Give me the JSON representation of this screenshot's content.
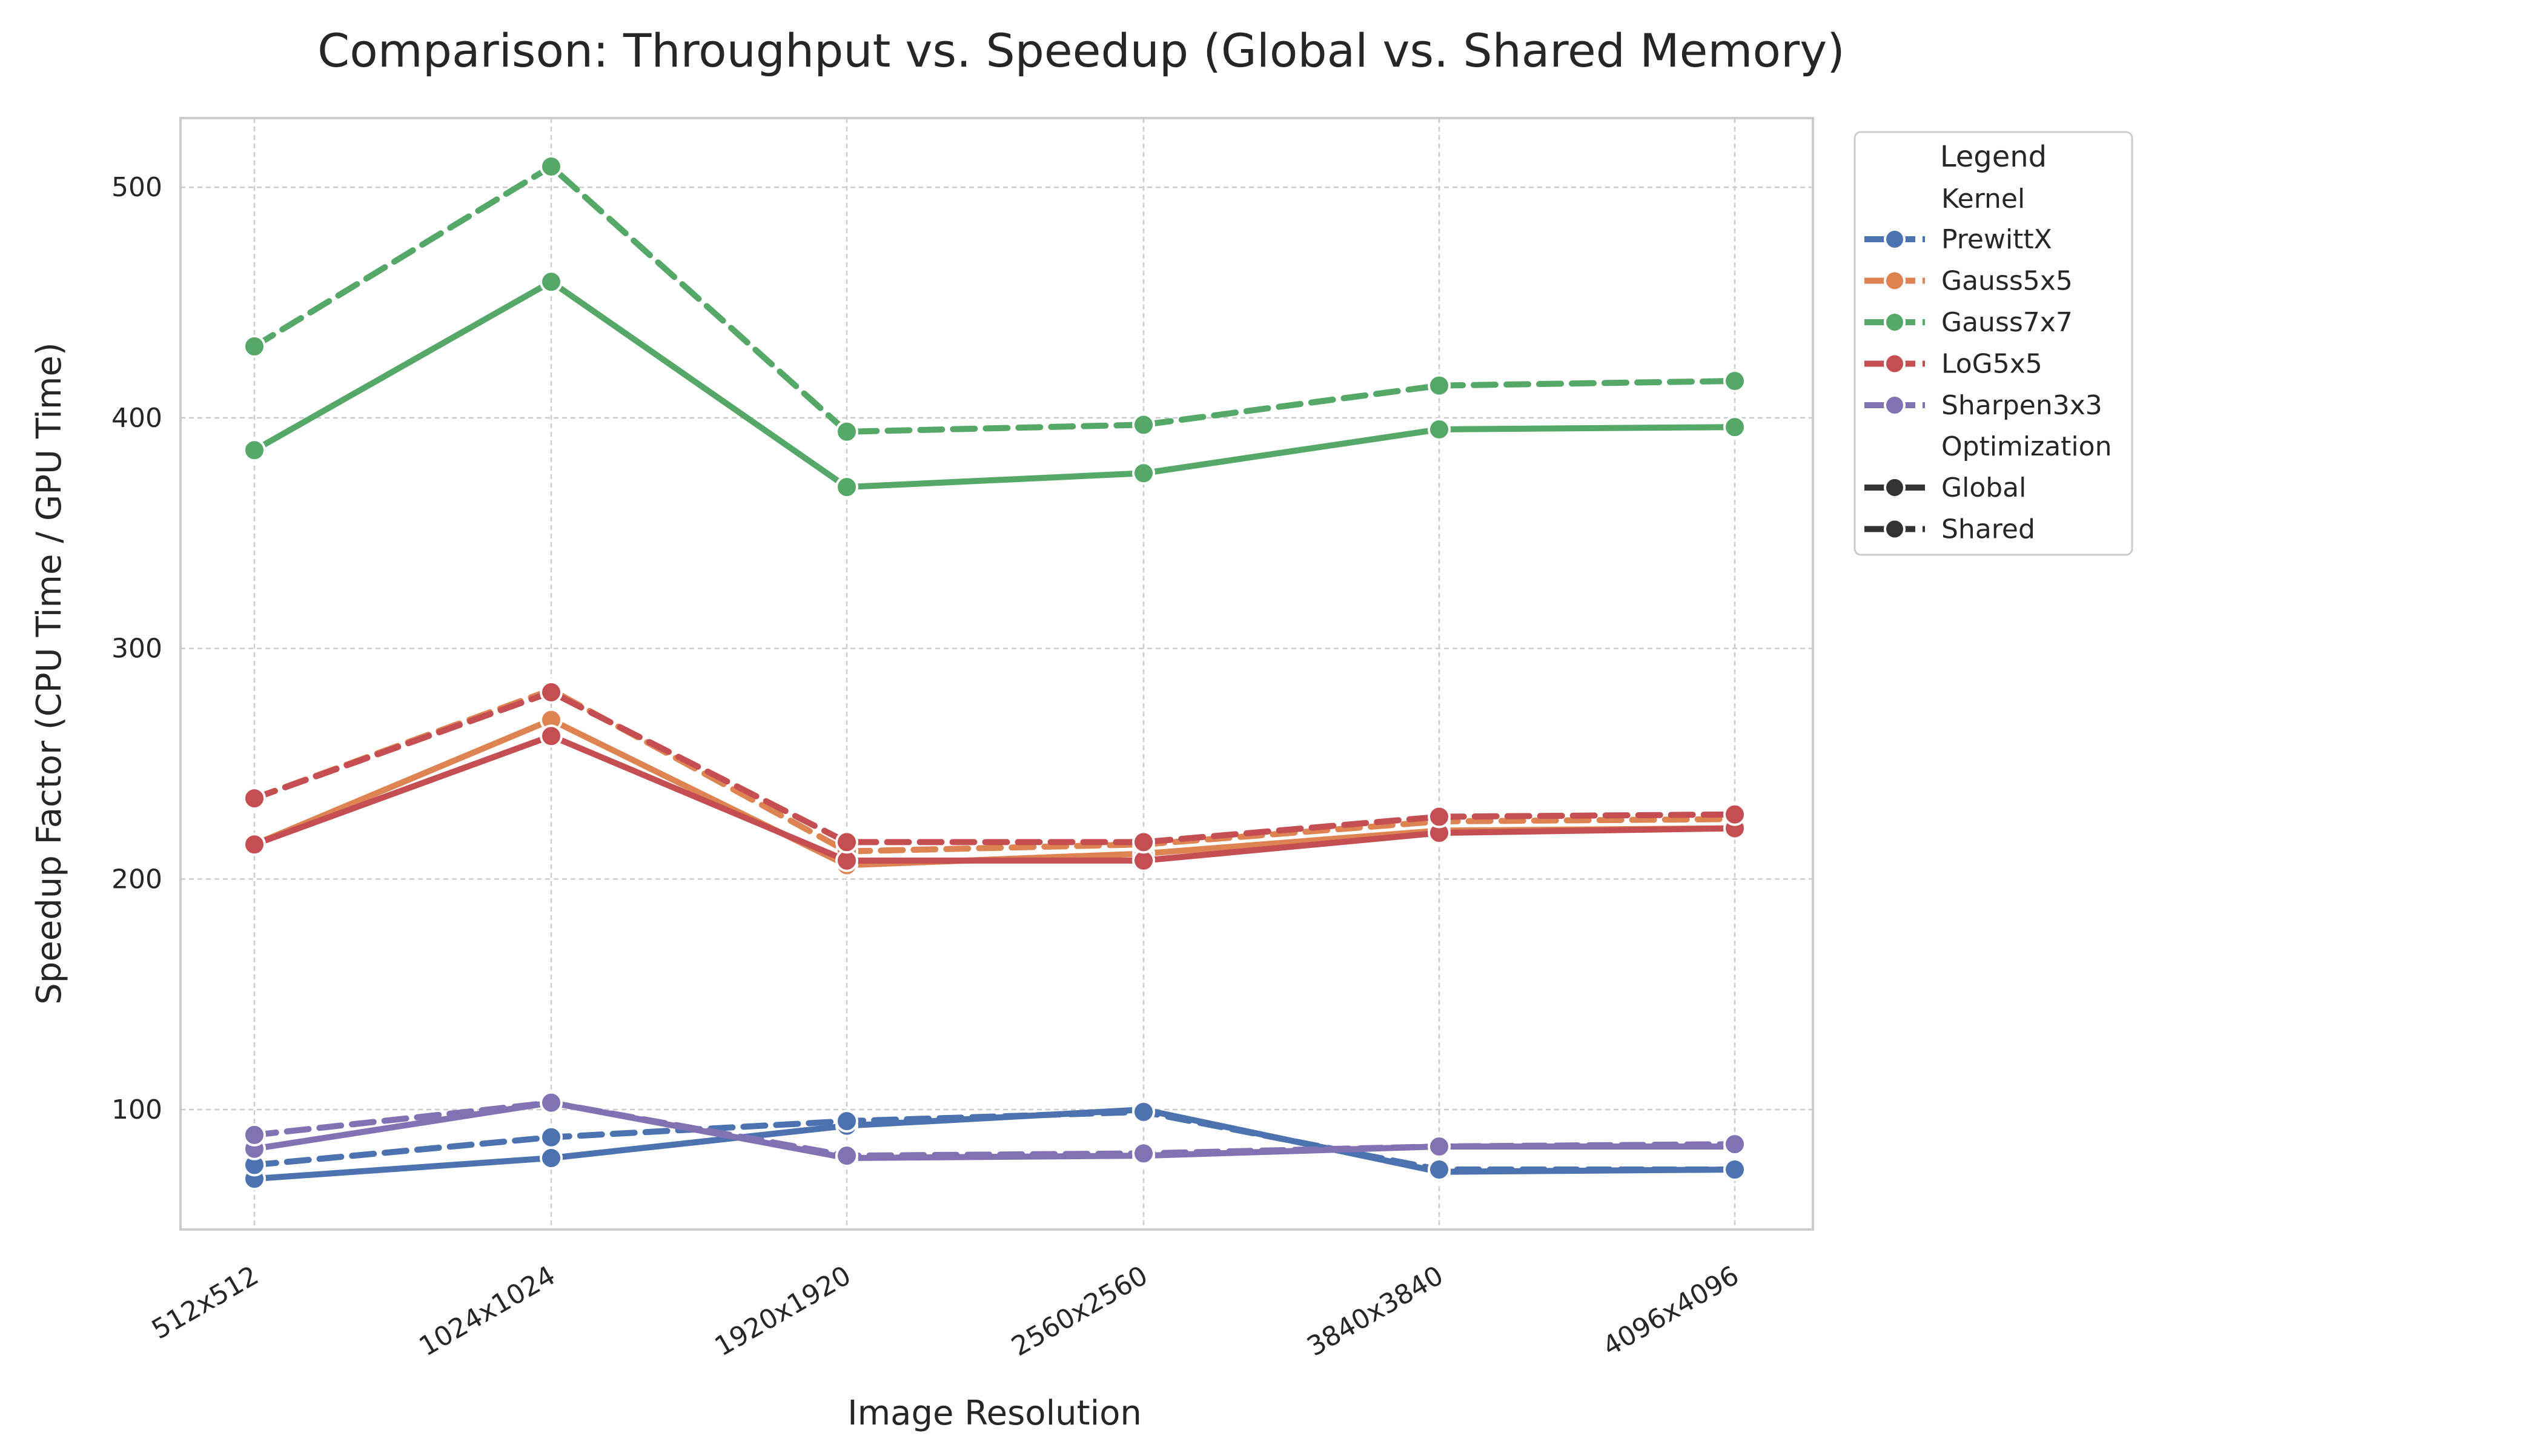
{
  "chart_data": {
    "type": "line",
    "title": "Comparison: Throughput vs. Speedup (Global vs. Shared Memory)",
    "xlabel": "Image Resolution",
    "ylabel": "Speedup Factor (CPU Time / GPU Time)",
    "categories": [
      "512x512",
      "1024x1024",
      "1920x1920",
      "2560x2560",
      "3840x3840",
      "4096x4096"
    ],
    "ylim": [
      48,
      530
    ],
    "yticks": [
      100,
      200,
      300,
      400,
      500
    ],
    "grid": true,
    "legend": {
      "title": "Legend",
      "placement": "outside-right",
      "hue_title": "Kernel",
      "style_title": "Optimization",
      "style_entries": [
        {
          "label": "Global",
          "dash": "solid"
        },
        {
          "label": "Shared",
          "dash": "dashed"
        }
      ]
    },
    "kernels": [
      {
        "name": "PrewittX",
        "color": "#4c72b0"
      },
      {
        "name": "Gauss5x5",
        "color": "#dd8452"
      },
      {
        "name": "Gauss7x7",
        "color": "#55a868"
      },
      {
        "name": "LoG5x5",
        "color": "#c44e52"
      },
      {
        "name": "Sharpen3x3",
        "color": "#8172b3"
      }
    ],
    "series": [
      {
        "kernel": "PrewittX",
        "optimization": "Global",
        "values": [
          70,
          79,
          93,
          100,
          73,
          74
        ]
      },
      {
        "kernel": "PrewittX",
        "optimization": "Shared",
        "values": [
          76,
          88,
          95,
          99,
          74,
          74
        ]
      },
      {
        "kernel": "Gauss5x5",
        "optimization": "Global",
        "values": [
          215,
          269,
          206,
          211,
          221,
          222
        ]
      },
      {
        "kernel": "Gauss5x5",
        "optimization": "Shared",
        "values": [
          235,
          282,
          212,
          215,
          225,
          226
        ]
      },
      {
        "kernel": "Gauss7x7",
        "optimization": "Global",
        "values": [
          386,
          459,
          370,
          376,
          395,
          396
        ]
      },
      {
        "kernel": "Gauss7x7",
        "optimization": "Shared",
        "values": [
          431,
          509,
          394,
          397,
          414,
          416
        ]
      },
      {
        "kernel": "LoG5x5",
        "optimization": "Global",
        "values": [
          215,
          262,
          208,
          208,
          220,
          222
        ]
      },
      {
        "kernel": "LoG5x5",
        "optimization": "Shared",
        "values": [
          235,
          281,
          216,
          216,
          227,
          228
        ]
      },
      {
        "kernel": "Sharpen3x3",
        "optimization": "Global",
        "values": [
          83,
          103,
          79,
          80,
          84,
          84
        ]
      },
      {
        "kernel": "Sharpen3x3",
        "optimization": "Shared",
        "values": [
          89,
          103,
          80,
          81,
          84,
          85
        ]
      }
    ]
  }
}
